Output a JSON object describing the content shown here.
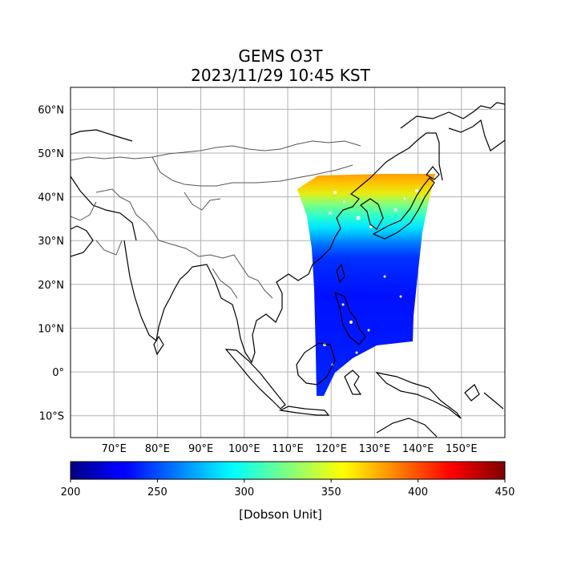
{
  "map": {
    "title_line1": "GEMS O3T",
    "title_line2": "2023/11/29 10:45 KST",
    "extent": {
      "lon_min": 60,
      "lon_max": 160,
      "lat_min": -15,
      "lat_max": 65
    },
    "lat_ticks": [
      {
        "value": 60,
        "label": "60°N"
      },
      {
        "value": 50,
        "label": "50°N"
      },
      {
        "value": 40,
        "label": "40°N"
      },
      {
        "value": 30,
        "label": "30°N"
      },
      {
        "value": 20,
        "label": "20°N"
      },
      {
        "value": 10,
        "label": "10°N"
      },
      {
        "value": 0,
        "label": "0°"
      },
      {
        "value": -10,
        "label": "10°S"
      }
    ],
    "lon_ticks": [
      {
        "value": 70,
        "label": "70°E"
      },
      {
        "value": 80,
        "label": "80°E"
      },
      {
        "value": 90,
        "label": "90°E"
      },
      {
        "value": 100,
        "label": "100°E"
      },
      {
        "value": 110,
        "label": "110°E"
      },
      {
        "value": 120,
        "label": "120°E"
      },
      {
        "value": 130,
        "label": "130°E"
      },
      {
        "value": 140,
        "label": "140°E"
      },
      {
        "value": 150,
        "label": "150°E"
      }
    ],
    "grid": true
  },
  "colorbar": {
    "label": "[Dobson Unit]",
    "colormap": "jet",
    "range": [
      200,
      450
    ],
    "ticks": [
      {
        "value": 200,
        "label": "200"
      },
      {
        "value": 250,
        "label": "250"
      },
      {
        "value": 300,
        "label": "300"
      },
      {
        "value": 350,
        "label": "350"
      },
      {
        "value": 400,
        "label": "400"
      },
      {
        "value": 450,
        "label": "450"
      }
    ]
  },
  "swath": {
    "field": "total column ozone",
    "bands": [
      {
        "lat_top": 45.5,
        "lat_bottom": 42,
        "value": 395
      },
      {
        "lat_top": 42,
        "lat_bottom": 38,
        "value": 345
      },
      {
        "lat_top": 38,
        "lat_bottom": 34,
        "value": 318
      },
      {
        "lat_top": 34,
        "lat_bottom": 30,
        "value": 290
      },
      {
        "lat_top": 30,
        "lat_bottom": 26,
        "value": 262
      },
      {
        "lat_top": 26,
        "lat_bottom": 18,
        "value": 245
      },
      {
        "lat_top": 18,
        "lat_bottom": 6,
        "value": 238
      },
      {
        "lat_top": 6,
        "lat_bottom": -5.5,
        "value": 242
      }
    ]
  }
}
